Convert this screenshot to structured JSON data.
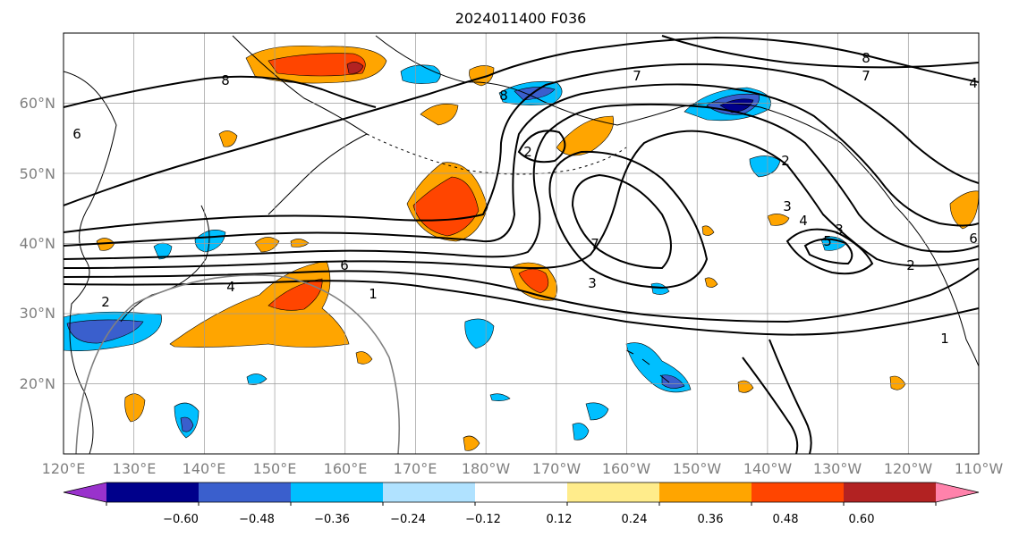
{
  "title": "2024011400 F036",
  "axes": {
    "lon_labels": [
      "120°E",
      "130°E",
      "140°E",
      "150°E",
      "160°E",
      "170°E",
      "180°W",
      "170°W",
      "160°W",
      "150°W",
      "140°W",
      "130°W",
      "120°W",
      "110°W"
    ],
    "lat_labels": [
      "20°N",
      "30°N",
      "40°N",
      "50°N",
      "60°N"
    ],
    "label_color": "#7f7f7f"
  },
  "colorbar": {
    "colors": [
      "#9932cc",
      "#00008b",
      "#3a5fcd",
      "#00bfff",
      "#b0e2ff",
      "#ffffff",
      "#ffec8b",
      "#ffa500",
      "#ff4500",
      "#b22222",
      "#ff82ab"
    ],
    "tick_labels": [
      "−0.60",
      "−0.48",
      "−0.36",
      "−0.24",
      "−0.12",
      "0.12",
      "0.24",
      "0.36",
      "0.48",
      "0.60"
    ]
  },
  "contour_labels": [
    "8",
    "8",
    "7",
    "8",
    "7",
    "6",
    "2",
    "2",
    "3",
    "4",
    "5",
    "6",
    "7",
    "4",
    "3",
    "3",
    "2",
    "1",
    "1",
    "2",
    "4",
    "6"
  ]
}
